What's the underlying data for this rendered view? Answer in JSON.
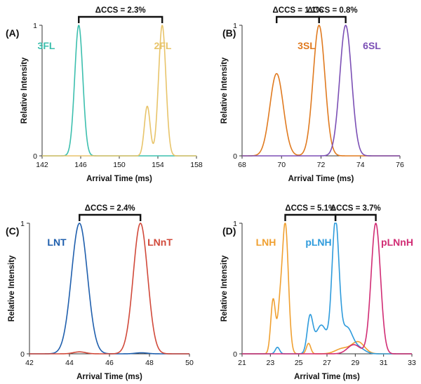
{
  "chart_data": [
    {
      "type": "line",
      "panel_label": "(A)",
      "xlabel": "Arrival Time (ms)",
      "ylabel": "Relative Intensity",
      "xlim": [
        142,
        158
      ],
      "ylim": [
        0,
        1
      ],
      "xticks": [
        142,
        146,
        150,
        154,
        158
      ],
      "yticks": [
        0,
        1
      ],
      "grid": false,
      "series": [
        {
          "name": "3FL",
          "color": "#3cbfae",
          "peaks": [
            {
              "center": 145.8,
              "height": 1.0,
              "width": 0.42
            }
          ]
        },
        {
          "name": "2FL",
          "color": "#e8c46a",
          "peaks": [
            {
              "center": 152.9,
              "height": 0.38,
              "width": 0.3
            },
            {
              "center": 154.45,
              "height": 1.0,
              "width": 0.38
            }
          ]
        }
      ],
      "annotations": [
        {
          "text": "ΔCCS = 2.3%",
          "from": 145.8,
          "to": 154.45
        }
      ]
    },
    {
      "type": "line",
      "panel_label": "(B)",
      "xlabel": "Arrival Time (ms)",
      "ylabel": "Relative Intensity",
      "xlim": [
        68,
        76
      ],
      "ylim": [
        0,
        1
      ],
      "xticks": [
        68,
        70,
        72,
        74,
        76
      ],
      "yticks": [
        0,
        1
      ],
      "grid": false,
      "series": [
        {
          "name": "3SL",
          "color": "#e07a1f",
          "peaks": [
            {
              "center": 69.75,
              "height": 0.63,
              "width": 0.34
            },
            {
              "center": 71.9,
              "height": 1.0,
              "width": 0.3
            }
          ]
        },
        {
          "name": "6SL",
          "color": "#7b4fb5",
          "peaks": [
            {
              "center": 73.25,
              "height": 1.0,
              "width": 0.3
            }
          ]
        }
      ],
      "annotations": [
        {
          "text": "ΔCCS = 1.1%",
          "from": 69.75,
          "to": 71.9
        },
        {
          "text": "ΔCCS = 0.8%",
          "from": 71.9,
          "to": 73.25
        }
      ]
    },
    {
      "type": "line",
      "panel_label": "(C)",
      "xlabel": "Arrival Time (ms)",
      "ylabel": "Relative Intensity",
      "xlim": [
        42,
        50
      ],
      "ylim": [
        0,
        1
      ],
      "xticks": [
        42,
        44,
        46,
        48,
        50
      ],
      "yticks": [
        0,
        1
      ],
      "grid": false,
      "series": [
        {
          "name": "LNT",
          "color": "#1f5fad",
          "peaks": [
            {
              "center": 44.5,
              "height": 1.0,
              "width": 0.4
            },
            {
              "center": 47.6,
              "height": 0.008,
              "width": 0.3
            }
          ]
        },
        {
          "name": "LNnT",
          "color": "#d1493a",
          "peaks": [
            {
              "center": 47.55,
              "height": 1.0,
              "width": 0.36
            },
            {
              "center": 44.5,
              "height": 0.015,
              "width": 0.3
            }
          ]
        }
      ],
      "annotations": [
        {
          "text": "ΔCCS = 2.4%",
          "from": 44.5,
          "to": 47.55
        }
      ]
    },
    {
      "type": "line",
      "panel_label": "(D)",
      "xlabel": "Arrival Time (ms)",
      "ylabel": "Relative Intensity",
      "xlim": [
        21,
        33
      ],
      "ylim": [
        0,
        1
      ],
      "xticks": [
        21,
        23,
        25,
        27,
        29,
        31,
        33
      ],
      "yticks": [
        0,
        1
      ],
      "grid": false,
      "series": [
        {
          "name": "LNH",
          "color": "#f0a030",
          "peaks": [
            {
              "center": 23.2,
              "height": 0.42,
              "width": 0.17
            },
            {
              "center": 23.65,
              "height": 0.25,
              "width": 0.15
            },
            {
              "center": 24.05,
              "height": 1.0,
              "width": 0.22
            },
            {
              "center": 25.7,
              "height": 0.08,
              "width": 0.15
            },
            {
              "center": 28.1,
              "height": 0.04,
              "width": 0.5
            },
            {
              "center": 29.2,
              "height": 0.09,
              "width": 0.45
            }
          ]
        },
        {
          "name": "pLNH",
          "color": "#2e9bdc",
          "peaks": [
            {
              "center": 23.5,
              "height": 0.05,
              "width": 0.15
            },
            {
              "center": 25.8,
              "height": 0.27,
              "width": 0.2
            },
            {
              "center": 26.6,
              "height": 0.22,
              "width": 0.4
            },
            {
              "center": 27.6,
              "height": 1.0,
              "width": 0.25
            },
            {
              "center": 28.4,
              "height": 0.2,
              "width": 0.4
            },
            {
              "center": 29.3,
              "height": 0.04,
              "width": 0.4
            }
          ]
        },
        {
          "name": "pLNnH",
          "color": "#d12c74",
          "peaks": [
            {
              "center": 28.9,
              "height": 0.07,
              "width": 0.45
            },
            {
              "center": 30.45,
              "height": 1.0,
              "width": 0.33
            }
          ]
        }
      ],
      "annotations": [
        {
          "text": "ΔCCS = 5.1%",
          "from": 24.05,
          "to": 27.6
        },
        {
          "text": "ΔCCS = 3.7%",
          "from": 27.6,
          "to": 30.45
        }
      ]
    }
  ]
}
